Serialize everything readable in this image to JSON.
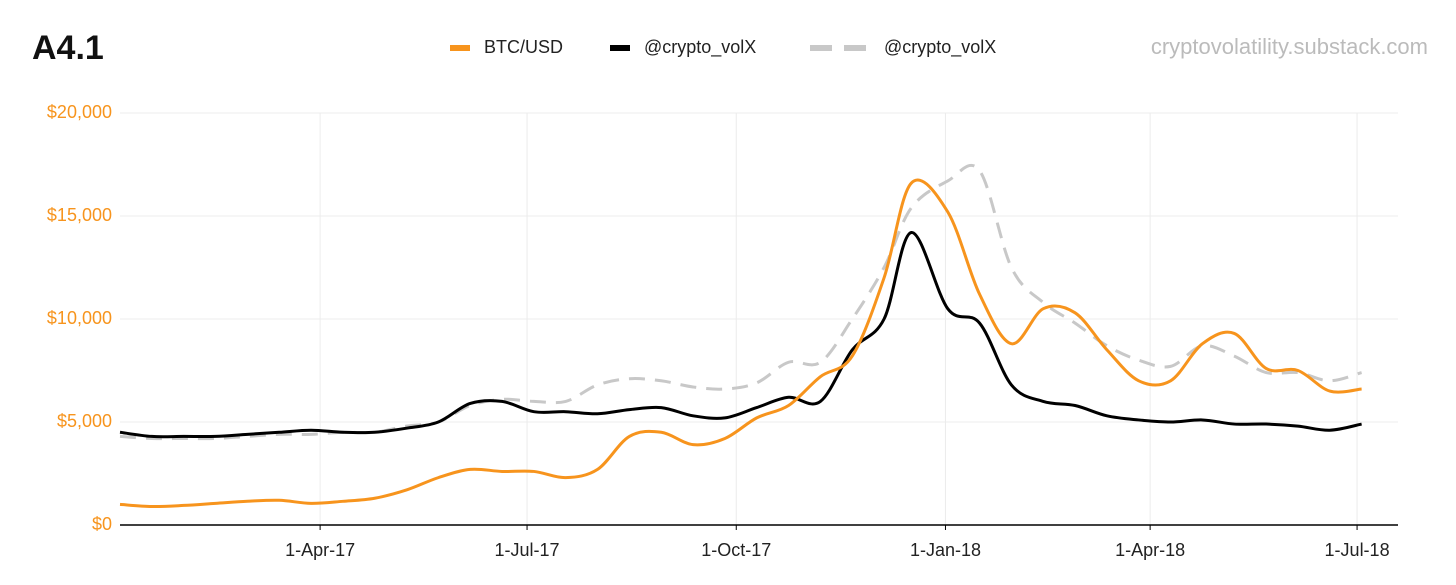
{
  "chart_data": {
    "type": "line",
    "title": "A4.1",
    "source": "cryptovolatility.substack.com",
    "x": [
      "2017-01-03",
      "2017-01-17",
      "2017-01-31",
      "2017-02-14",
      "2017-02-28",
      "2017-03-14",
      "2017-03-28",
      "2017-04-11",
      "2017-04-25",
      "2017-05-09",
      "2017-05-23",
      "2017-06-06",
      "2017-06-20",
      "2017-07-04",
      "2017-07-18",
      "2017-08-01",
      "2017-08-15",
      "2017-08-29",
      "2017-09-12",
      "2017-09-26",
      "2017-10-10",
      "2017-10-24",
      "2017-11-07",
      "2017-11-21",
      "2017-12-05",
      "2017-12-17",
      "2018-01-02",
      "2018-01-16",
      "2018-01-30",
      "2018-02-13",
      "2018-02-27",
      "2018-03-13",
      "2018-03-27",
      "2018-04-10",
      "2018-04-24",
      "2018-05-08",
      "2018-05-22",
      "2018-06-05",
      "2018-06-19",
      "2018-07-03"
    ],
    "series": [
      {
        "name": "BTC/USD",
        "color": "#f7941d",
        "style": "solid",
        "values": [
          1000,
          900,
          950,
          1050,
          1150,
          1200,
          1050,
          1150,
          1300,
          1700,
          2300,
          2700,
          2600,
          2600,
          2300,
          2700,
          4300,
          4500,
          3900,
          4200,
          5200,
          5800,
          7200,
          8200,
          12000,
          16600,
          15200,
          11200,
          8800,
          10500,
          10300,
          8500,
          7000,
          7000,
          8800,
          9300,
          7600,
          7500,
          6500,
          6600
        ]
      },
      {
        "name": "@crypto_volX",
        "color": "#000000",
        "style": "solid",
        "values": [
          4500,
          4300,
          4300,
          4300,
          4400,
          4500,
          4600,
          4500,
          4500,
          4700,
          5000,
          5900,
          6000,
          5500,
          5500,
          5400,
          5600,
          5700,
          5300,
          5200,
          5700,
          6200,
          6000,
          8500,
          10000,
          14200,
          10500,
          9800,
          6800,
          6000,
          5800,
          5300,
          5100,
          5000,
          5100,
          4900,
          4900,
          4800,
          4600,
          4900
        ]
      },
      {
        "name": "@crypto_volX",
        "color": "#c8c8c8",
        "style": "dashed",
        "values": [
          4300,
          4200,
          4200,
          4200,
          4300,
          4400,
          4400,
          4500,
          4500,
          4800,
          5000,
          5800,
          6100,
          6000,
          6000,
          6800,
          7100,
          7000,
          6700,
          6600,
          6900,
          7900,
          7900,
          10000,
          12500,
          15400,
          16700,
          17200,
          12500,
          10800,
          9800,
          8700,
          8000,
          7700,
          8700,
          8200,
          7400,
          7400,
          7000,
          7400
        ]
      }
    ],
    "xlim": [
      "2017-01-03",
      "2018-07-19"
    ],
    "xticks": [
      {
        "value": "2017-04-01",
        "label": "1-Apr-17"
      },
      {
        "value": "2017-07-01",
        "label": "1-Jul-17"
      },
      {
        "value": "2017-10-01",
        "label": "1-Oct-17"
      },
      {
        "value": "2018-01-01",
        "label": "1-Jan-18"
      },
      {
        "value": "2018-04-01",
        "label": "1-Apr-18"
      },
      {
        "value": "2018-07-01",
        "label": "1-Jul-18"
      }
    ],
    "ylim": [
      0,
      20000
    ],
    "yticks": [
      {
        "value": 0,
        "label": "$0"
      },
      {
        "value": 5000,
        "label": "$5,000"
      },
      {
        "value": 10000,
        "label": "$10,000"
      },
      {
        "value": 15000,
        "label": "$15,000"
      },
      {
        "value": 20000,
        "label": "$20,000"
      }
    ],
    "ytick_color": "#f7941d",
    "grid": true,
    "legend": "top"
  }
}
